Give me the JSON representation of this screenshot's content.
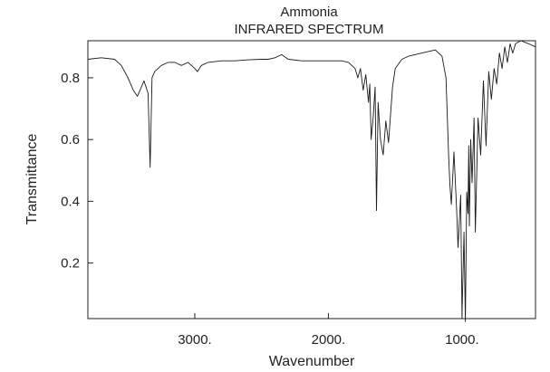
{
  "chart_data": {
    "type": "line",
    "title": "Ammonia",
    "subtitle": "INFRARED SPECTRUM",
    "xlabel": "Wavenumber",
    "ylabel": "Transmittance",
    "xlim": [
      3800,
      450
    ],
    "ylim": [
      0.02,
      0.92
    ],
    "x_ticks": [
      {
        "value": 3000,
        "label": "3000."
      },
      {
        "value": 2000,
        "label": "2000."
      },
      {
        "value": 1000,
        "label": "1000."
      }
    ],
    "y_ticks": [
      {
        "value": 0.8,
        "label": "0.8"
      },
      {
        "value": 0.6,
        "label": "0.6"
      },
      {
        "value": 0.4,
        "label": "0.4"
      },
      {
        "value": 0.2,
        "label": "0.2"
      }
    ],
    "grid": false,
    "legend": "none",
    "line_color": "#1a1a1a",
    "series": [
      {
        "x": [
          3800,
          3700,
          3600,
          3550,
          3500,
          3460,
          3430,
          3400,
          3380,
          3350,
          3334,
          3320,
          3300,
          3250,
          3200,
          3150,
          3100,
          3050,
          3000,
          2980,
          2950,
          2900,
          2800,
          2700,
          2600,
          2500,
          2450,
          2400,
          2350,
          2300,
          2200,
          2000,
          1900,
          1850,
          1800,
          1780,
          1760,
          1740,
          1720,
          1700,
          1690,
          1680,
          1665,
          1650,
          1640,
          1628,
          1610,
          1590,
          1570,
          1550,
          1520,
          1500,
          1450,
          1400,
          1300,
          1200,
          1150,
          1120,
          1100,
          1090,
          1080,
          1060,
          1040,
          1030,
          1010,
          1000,
          985,
          975,
          965,
          955,
          950,
          945,
          935,
          925,
          910,
          900,
          880,
          860,
          840,
          820,
          800,
          780,
          760,
          740,
          720,
          700,
          680,
          660,
          640,
          620,
          600,
          560,
          500,
          450
        ],
        "y": [
          0.86,
          0.865,
          0.86,
          0.84,
          0.8,
          0.76,
          0.74,
          0.77,
          0.79,
          0.75,
          0.51,
          0.8,
          0.82,
          0.84,
          0.85,
          0.85,
          0.84,
          0.85,
          0.83,
          0.82,
          0.84,
          0.85,
          0.855,
          0.855,
          0.858,
          0.86,
          0.86,
          0.865,
          0.875,
          0.86,
          0.855,
          0.855,
          0.855,
          0.85,
          0.83,
          0.8,
          0.83,
          0.76,
          0.81,
          0.72,
          0.78,
          0.6,
          0.67,
          0.77,
          0.37,
          0.72,
          0.6,
          0.55,
          0.66,
          0.59,
          0.77,
          0.83,
          0.86,
          0.87,
          0.88,
          0.89,
          0.87,
          0.8,
          0.55,
          0.45,
          0.39,
          0.56,
          0.37,
          0.25,
          0.42,
          0.03,
          0.3,
          0.01,
          0.43,
          0.36,
          0.58,
          0.32,
          0.6,
          0.46,
          0.67,
          0.3,
          0.67,
          0.55,
          0.79,
          0.58,
          0.82,
          0.73,
          0.83,
          0.78,
          0.88,
          0.83,
          0.9,
          0.85,
          0.91,
          0.88,
          0.91,
          0.92,
          0.91,
          0.9
        ]
      }
    ]
  }
}
